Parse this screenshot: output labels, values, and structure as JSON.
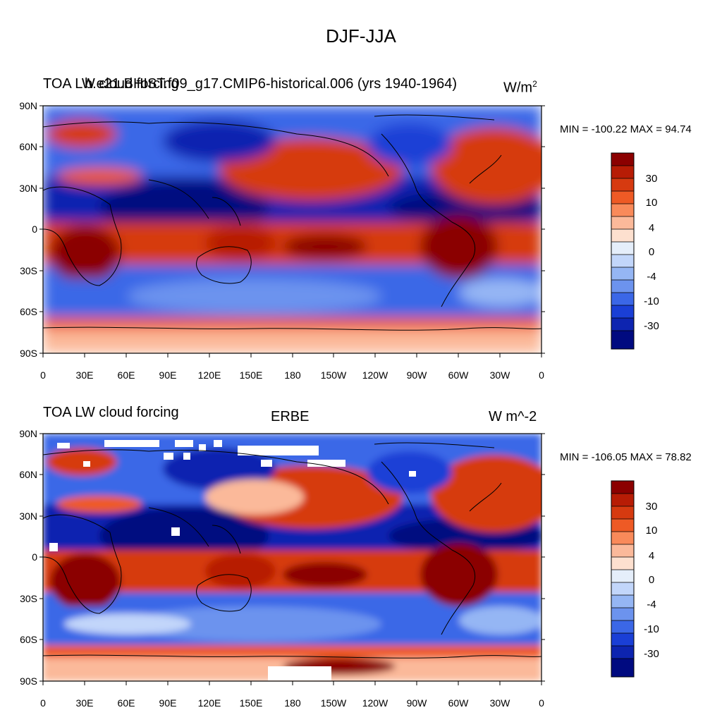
{
  "figure": {
    "title": "DJF-JJA"
  },
  "panels": [
    {
      "left_title_a": "TOA LW cloud forcing",
      "left_title_b": "b.e21.BHIST.f09_g17.CMIP6-historical.006 (yrs 1940-1964)",
      "center_title": "",
      "units": "W/m",
      "units_sup": "2",
      "min_max": "MIN = -100.22 MAX =  94.74"
    },
    {
      "left_title_a": "TOA LW cloud forcing",
      "left_title_b": "",
      "center_title": "ERBE",
      "units": "W m^-2",
      "units_sup": "",
      "min_max": "MIN = -106.05 MAX =  78.82"
    }
  ],
  "axes": {
    "lat_labels": [
      "90N",
      "60N",
      "30N",
      "0",
      "30S",
      "60S",
      "90S"
    ],
    "lon_labels": [
      "0",
      "30E",
      "60E",
      "90E",
      "120E",
      "150E",
      "180",
      "150W",
      "120W",
      "90W",
      "60W",
      "30W",
      "0"
    ]
  },
  "colorbar": {
    "labels": [
      "30",
      "10",
      "4",
      "0",
      "-4",
      "-10",
      "-30"
    ],
    "colors": [
      "#8b0000",
      "#b71c05",
      "#d63a10",
      "#ee5a25",
      "#f98a5a",
      "#fbb99a",
      "#fde0cf",
      "#e5eefa",
      "#c2d6fa",
      "#95b6f4",
      "#6c93ee",
      "#3b67e7",
      "#1a3fd6",
      "#0d24b0",
      "#000a80"
    ]
  },
  "palette": {
    "deep_red": "#8b0000",
    "red": "#d63a10",
    "light_red": "#f98a5a",
    "pale_red": "#fde0cf",
    "pale_blue": "#c2d6fa",
    "blue": "#3b67e7",
    "deep_blue": "#0d24b0",
    "navy": "#000a80",
    "missing": "#ffffff",
    "coast": "#000000"
  }
}
